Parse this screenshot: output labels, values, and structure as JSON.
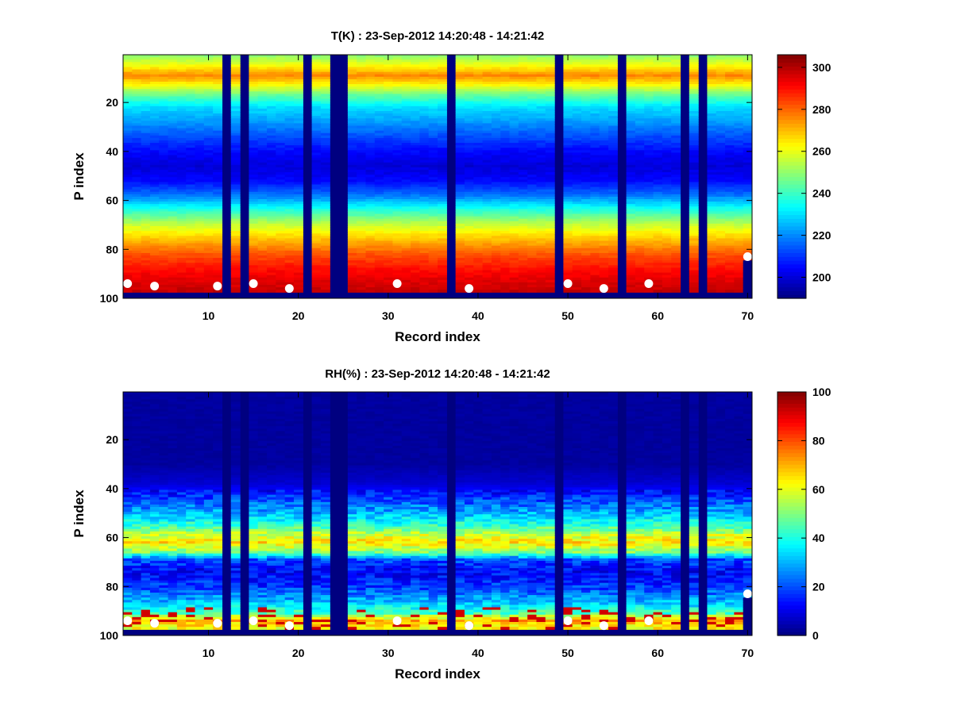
{
  "chart_data": [
    {
      "type": "heatmap",
      "title": "T(K) : 23-Sep-2012 14:20:48 - 14:21:42",
      "xlabel": "Record index",
      "ylabel": "P index",
      "xlim": [
        0.5,
        70.5
      ],
      "ylim": [
        100,
        0.5
      ],
      "x_ticks": [
        10,
        20,
        30,
        40,
        50,
        60,
        70
      ],
      "y_ticks": [
        20,
        40,
        60,
        80,
        100
      ],
      "colormap": "jet",
      "clim": [
        190,
        306
      ],
      "colorbar_ticks": [
        200,
        220,
        240,
        260,
        280,
        300
      ],
      "missing_records": [
        12,
        14,
        21,
        24,
        25,
        37,
        49,
        56,
        63,
        65
      ],
      "bottom_invalid_rows": [
        98,
        99,
        100
      ],
      "profile_levels": [
        {
          "p": 1,
          "value": 250
        },
        {
          "p": 5,
          "value": 262
        },
        {
          "p": 9,
          "value": 276
        },
        {
          "p": 13,
          "value": 262
        },
        {
          "p": 17,
          "value": 245
        },
        {
          "p": 22,
          "value": 230
        },
        {
          "p": 28,
          "value": 222
        },
        {
          "p": 34,
          "value": 213
        },
        {
          "p": 40,
          "value": 205
        },
        {
          "p": 46,
          "value": 200
        },
        {
          "p": 52,
          "value": 205
        },
        {
          "p": 58,
          "value": 218
        },
        {
          "p": 64,
          "value": 238
        },
        {
          "p": 70,
          "value": 256
        },
        {
          "p": 76,
          "value": 270
        },
        {
          "p": 82,
          "value": 282
        },
        {
          "p": 88,
          "value": 290
        },
        {
          "p": 93,
          "value": 295
        },
        {
          "p": 97,
          "value": 298
        }
      ],
      "markers": [
        {
          "x": 1,
          "y": 94
        },
        {
          "x": 4,
          "y": 95
        },
        {
          "x": 11,
          "y": 95
        },
        {
          "x": 15,
          "y": 94
        },
        {
          "x": 19,
          "y": 96
        },
        {
          "x": 31,
          "y": 94
        },
        {
          "x": 39,
          "y": 96
        },
        {
          "x": 50,
          "y": 94
        },
        {
          "x": 54,
          "y": 96
        },
        {
          "x": 59,
          "y": 94
        },
        {
          "x": 70,
          "y": 83
        }
      ]
    },
    {
      "type": "heatmap",
      "title": "RH(%) : 23-Sep-2012 14:20:48 - 14:21:42",
      "xlabel": "Record index",
      "ylabel": "P index",
      "xlim": [
        0.5,
        70.5
      ],
      "ylim": [
        100,
        0.5
      ],
      "x_ticks": [
        10,
        20,
        30,
        40,
        50,
        60,
        70
      ],
      "y_ticks": [
        20,
        40,
        60,
        80,
        100
      ],
      "colormap": "jet",
      "clim": [
        0,
        100
      ],
      "colorbar_ticks": [
        0,
        20,
        40,
        60,
        80,
        100
      ],
      "missing_records": [
        12,
        14,
        21,
        24,
        25,
        37,
        49,
        56,
        63,
        65
      ],
      "bottom_invalid_rows": [
        98,
        99,
        100
      ],
      "profile_levels": [
        {
          "p": 1,
          "value": 3
        },
        {
          "p": 30,
          "value": 3
        },
        {
          "p": 38,
          "value": 8
        },
        {
          "p": 44,
          "value": 18
        },
        {
          "p": 50,
          "value": 30
        },
        {
          "p": 55,
          "value": 42
        },
        {
          "p": 59,
          "value": 58
        },
        {
          "p": 62,
          "value": 65
        },
        {
          "p": 66,
          "value": 50
        },
        {
          "p": 69,
          "value": 20
        },
        {
          "p": 74,
          "value": 12
        },
        {
          "p": 80,
          "value": 18
        },
        {
          "p": 86,
          "value": 30
        },
        {
          "p": 91,
          "value": 45
        },
        {
          "p": 94,
          "value": 70
        },
        {
          "p": 97,
          "value": 62
        }
      ],
      "markers": [
        {
          "x": 1,
          "y": 94
        },
        {
          "x": 4,
          "y": 95
        },
        {
          "x": 11,
          "y": 95
        },
        {
          "x": 15,
          "y": 94
        },
        {
          "x": 19,
          "y": 96
        },
        {
          "x": 31,
          "y": 94
        },
        {
          "x": 39,
          "y": 96
        },
        {
          "x": 50,
          "y": 94
        },
        {
          "x": 54,
          "y": 96
        },
        {
          "x": 59,
          "y": 94
        },
        {
          "x": 70,
          "y": 83
        }
      ]
    }
  ]
}
